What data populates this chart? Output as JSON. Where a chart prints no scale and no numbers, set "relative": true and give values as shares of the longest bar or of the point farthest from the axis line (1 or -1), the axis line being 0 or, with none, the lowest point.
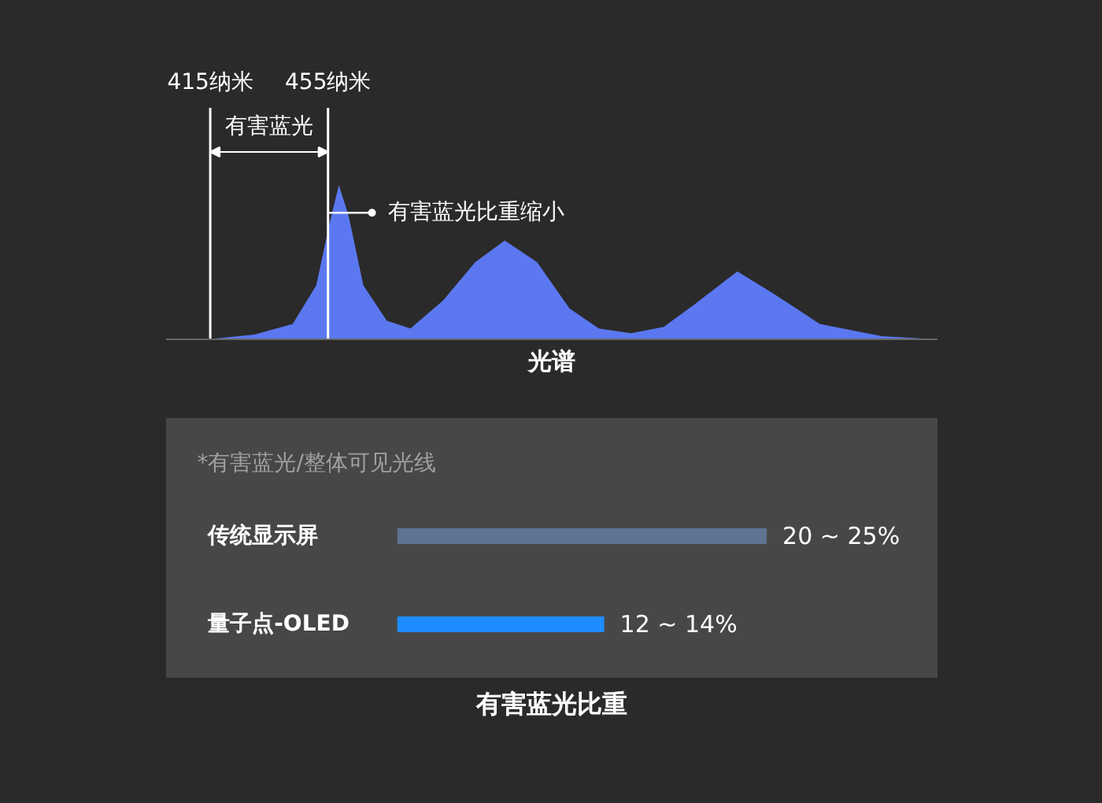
{
  "chart_data": [
    {
      "type": "area",
      "relative": true,
      "xlabel": "光谱",
      "xlim": [
        400,
        662
      ],
      "xticks": [
        {
          "value": 415,
          "label": "415纳米"
        },
        {
          "value": 455,
          "label": "455纳米"
        }
      ],
      "x": [
        414,
        430,
        443,
        451,
        455.5,
        458.7,
        462,
        467,
        475,
        483,
        494,
        505,
        515,
        526,
        537,
        547,
        558,
        569,
        579,
        594,
        606,
        622,
        643,
        662
      ],
      "series": [
        {
          "color": "#5b78f0",
          "values": [
            0,
            0.03,
            0.1,
            0.35,
            0.75,
            1.0,
            0.8,
            0.35,
            0.12,
            0.07,
            0.25,
            0.5,
            0.64,
            0.5,
            0.2,
            0.07,
            0.04,
            0.08,
            0.22,
            0.44,
            0.3,
            0.1,
            0.02,
            0
          ]
        }
      ],
      "ref_lines": [
        {
          "axis": "x",
          "value": 415,
          "color": "#ffffff"
        },
        {
          "axis": "x",
          "value": 455,
          "color": "#ffffff"
        }
      ],
      "annotations": [
        "有害蓝光",
        {
          "text": "有害蓝光比重缩小",
          "x": 455,
          "y": 0.82
        }
      ]
    },
    {
      "type": "bar",
      "orientation": "horizontal",
      "title": "有害蓝光比重",
      "subtitle": "*有害蓝光/整体可见光线",
      "categories": [
        "传统显示屏",
        "量子点-OLED"
      ],
      "values": [
        25,
        14
      ],
      "colors": [
        "#5f7392",
        "#1e8cff"
      ],
      "value_labels": [
        "20 ~ 25%",
        "12 ~ 14%"
      ]
    }
  ]
}
